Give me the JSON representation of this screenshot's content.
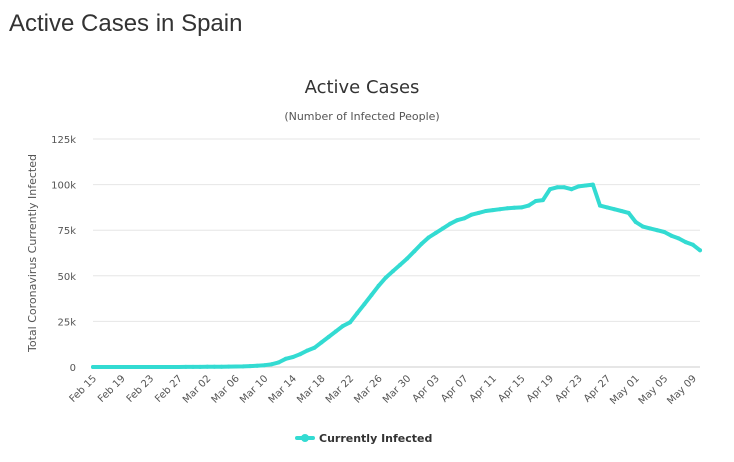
{
  "page": {
    "title": "Active Cases in Spain"
  },
  "colors": {
    "series": "#33dbd2",
    "grid": "#e6e6e6",
    "text": "#333333"
  },
  "chart_data": {
    "type": "line",
    "title": "Active Cases",
    "subtitle": "(Number of Infected People)",
    "xlabel": "",
    "ylabel": "Total Coronavirus Currently Infected",
    "ylim": [
      0,
      125000
    ],
    "yticks": [
      0,
      25000,
      50000,
      75000,
      100000,
      125000
    ],
    "ytick_labels": [
      "0",
      "25k",
      "50k",
      "75k",
      "100k",
      "125k"
    ],
    "grid": true,
    "legend_position": "bottom-center",
    "xtick_labels": [
      "Feb 15",
      "Feb 19",
      "Feb 23",
      "Feb 27",
      "Mar 02",
      "Mar 06",
      "Mar 10",
      "Mar 14",
      "Mar 18",
      "Mar 22",
      "Mar 26",
      "Mar 30",
      "Apr 03",
      "Apr 07",
      "Apr 11",
      "Apr 15",
      "Apr 19",
      "Apr 23",
      "Apr 27",
      "May 01",
      "May 05",
      "May 09"
    ],
    "x": [
      "Feb 15",
      "Feb 16",
      "Feb 17",
      "Feb 18",
      "Feb 19",
      "Feb 20",
      "Feb 21",
      "Feb 22",
      "Feb 23",
      "Feb 24",
      "Feb 25",
      "Feb 26",
      "Feb 27",
      "Feb 28",
      "Feb 29",
      "Mar 01",
      "Mar 02",
      "Mar 03",
      "Mar 04",
      "Mar 05",
      "Mar 06",
      "Mar 07",
      "Mar 08",
      "Mar 09",
      "Mar 10",
      "Mar 11",
      "Mar 12",
      "Mar 13",
      "Mar 14",
      "Mar 15",
      "Mar 16",
      "Mar 17",
      "Mar 18",
      "Mar 19",
      "Mar 20",
      "Mar 21",
      "Mar 22",
      "Mar 23",
      "Mar 24",
      "Mar 25",
      "Mar 26",
      "Mar 27",
      "Mar 28",
      "Mar 29",
      "Mar 30",
      "Mar 31",
      "Apr 01",
      "Apr 02",
      "Apr 03",
      "Apr 04",
      "Apr 05",
      "Apr 06",
      "Apr 07",
      "Apr 08",
      "Apr 09",
      "Apr 10",
      "Apr 11",
      "Apr 12",
      "Apr 13",
      "Apr 14",
      "Apr 15",
      "Apr 16",
      "Apr 17",
      "Apr 18",
      "Apr 19",
      "Apr 20",
      "Apr 21",
      "Apr 22",
      "Apr 23",
      "Apr 24",
      "Apr 25",
      "Apr 26",
      "Apr 27",
      "Apr 28",
      "Apr 29",
      "Apr 30",
      "May 01",
      "May 02",
      "May 03",
      "May 04",
      "May 05",
      "May 06",
      "May 07",
      "May 08",
      "May 09",
      "May 10"
    ],
    "series": [
      {
        "name": "Currently Infected",
        "values": [
          2,
          2,
          2,
          2,
          2,
          2,
          2,
          2,
          2,
          2,
          7,
          11,
          15,
          30,
          40,
          60,
          100,
          130,
          180,
          230,
          300,
          350,
          500,
          700,
          1000,
          1500,
          2500,
          4500,
          5500,
          7000,
          9000,
          10500,
          13500,
          16500,
          19500,
          22500,
          24500,
          29500,
          34500,
          39500,
          44500,
          49000,
          52500,
          56000,
          59500,
          63500,
          67500,
          71000,
          73500,
          76000,
          78500,
          80500,
          81500,
          83500,
          84500,
          85500,
          86000,
          86500,
          87000,
          87300,
          87500,
          88500,
          91000,
          91500,
          97500,
          98500,
          98500,
          97500,
          99000,
          99500,
          100000,
          88500,
          87500,
          86500,
          85500,
          84500,
          79500,
          77000,
          76000,
          75000,
          74000,
          72000,
          70500,
          68500,
          67000,
          64000
        ]
      }
    ]
  }
}
